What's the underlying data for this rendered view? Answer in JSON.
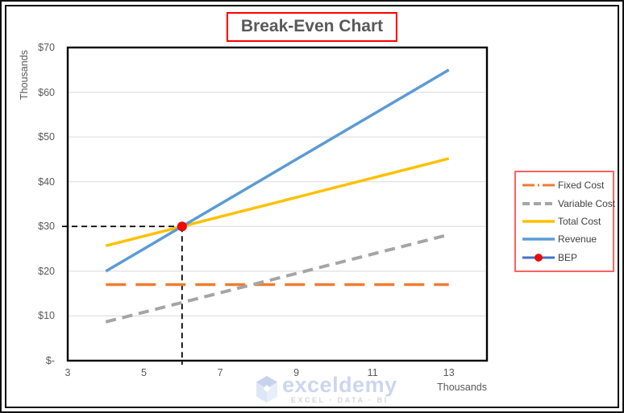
{
  "title": {
    "text": "Break-Even Chart",
    "text_color": "#595959",
    "box_border": "#ff0000"
  },
  "axes": {
    "y_title": "Thousands",
    "x_title": "Thousands",
    "y_ticks": [
      {
        "label": "$-",
        "value": 0
      },
      {
        "label": "$10",
        "value": 10
      },
      {
        "label": "$20",
        "value": 20
      },
      {
        "label": "$30",
        "value": 30
      },
      {
        "label": "$40",
        "value": 40
      },
      {
        "label": "$50",
        "value": 50
      },
      {
        "label": "$60",
        "value": 60
      },
      {
        "label": "$70",
        "value": 70
      }
    ],
    "x_ticks": [
      {
        "label": "3",
        "value": 3
      },
      {
        "label": "5",
        "value": 5
      },
      {
        "label": "7",
        "value": 7
      },
      {
        "label": "9",
        "value": 9
      },
      {
        "label": "11",
        "value": 11
      },
      {
        "label": "13",
        "value": 13
      }
    ]
  },
  "chart_data": {
    "type": "line",
    "title": "Break-Even Chart",
    "xlabel": "Thousands",
    "ylabel": "Thousands",
    "xlim": [
      3,
      14
    ],
    "ylim": [
      0,
      70
    ],
    "grid": "horizontal-only",
    "gridline_color": "#d9d9d9",
    "axis_border_color": "#000000",
    "legend_position": "right-outside",
    "x": [
      4,
      5,
      6,
      7,
      8,
      9,
      10,
      11,
      12,
      13
    ],
    "series": [
      {
        "name": "Fixed Cost",
        "color": "#ED7D31",
        "dash": "long-dash",
        "width": 3.5,
        "values": [
          17,
          17,
          17,
          17,
          17,
          17,
          17,
          17,
          17,
          17
        ]
      },
      {
        "name": "Variable Cost",
        "color": "#A5A5A5",
        "dash": "dash",
        "width": 4,
        "values": [
          8.67,
          10.83,
          13,
          15.17,
          17.33,
          19.5,
          21.67,
          23.83,
          26,
          28.17
        ]
      },
      {
        "name": "Total Cost",
        "color": "#FFC000",
        "dash": "solid",
        "width": 3.5,
        "values": [
          25.67,
          27.83,
          30,
          32.17,
          34.33,
          36.5,
          38.67,
          40.83,
          43,
          45.17
        ]
      },
      {
        "name": "Revenue",
        "color": "#5B9BD5",
        "dash": "solid",
        "width": 3.5,
        "values": [
          20,
          25,
          30,
          35,
          40,
          45,
          50,
          55,
          60,
          65
        ]
      }
    ],
    "bep": {
      "name": "BEP",
      "x": 6,
      "y": 30,
      "marker_color": "#FF0000",
      "marker_edge": "#C41212",
      "guide_color": "#000000",
      "guide_style": "dash"
    }
  },
  "legend": {
    "border_color": "#ff6161",
    "items": [
      {
        "label": "Fixed Cost",
        "color": "#ED7D31",
        "swatch": "long-dash-dot",
        "width": 3
      },
      {
        "label": "Variable Cost",
        "color": "#A5A5A5",
        "swatch": "dash",
        "width": 4
      },
      {
        "label": "Total Cost",
        "color": "#FFC000",
        "swatch": "solid",
        "width": 3.5
      },
      {
        "label": "Revenue",
        "color": "#5B9BD5",
        "swatch": "solid",
        "width": 3.5
      },
      {
        "label": "BEP",
        "color": "#4472C4",
        "swatch": "solid-marker",
        "width": 3,
        "marker_color": "#FF0000"
      }
    ]
  },
  "watermark": {
    "brand": "exceldemy",
    "tagline": "EXCEL · DATA · BI",
    "brand_color": "#ccd6f0",
    "tagline_color": "#d6d6d6"
  }
}
